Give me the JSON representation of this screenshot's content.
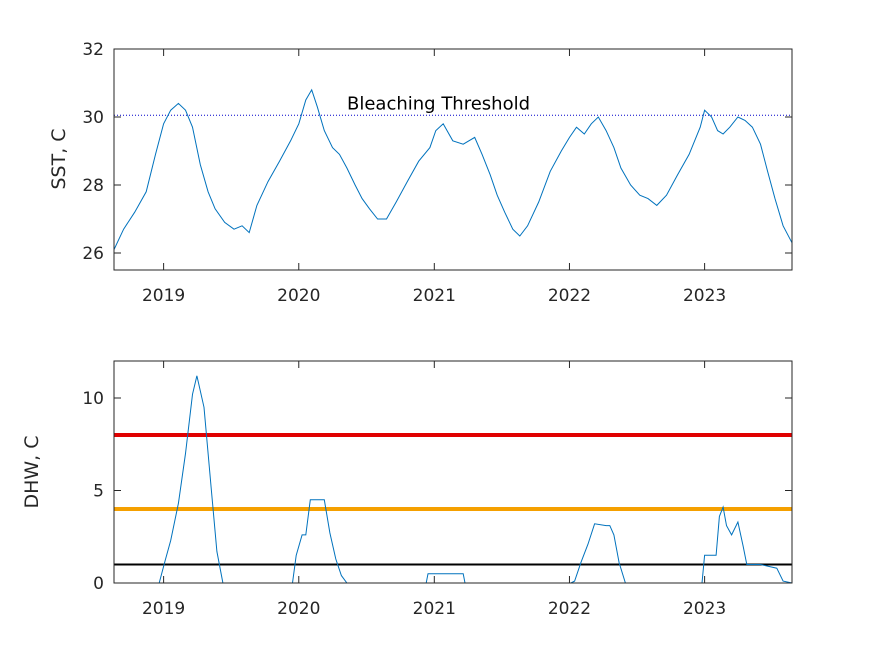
{
  "chart_data": [
    {
      "type": "line",
      "ylabel": "SST, C",
      "ylim": [
        25.5,
        32
      ],
      "yticks": [
        "26",
        "28",
        "30",
        "32"
      ],
      "yticks_values": [
        26,
        28,
        30,
        32
      ],
      "xticks": [
        "2019",
        "2020",
        "2021",
        "2022",
        "2023"
      ],
      "xticks_values": [
        "2019-01-01",
        "2020-01-01",
        "2021-01-01",
        "2022-01-01",
        "2023-01-01"
      ],
      "xlim": [
        "2018-08-20",
        "2023-08-25"
      ],
      "grid": false,
      "series_color": "#0072BD",
      "threshold": {
        "value": 30.05,
        "label": "Bleaching Threshold",
        "style": "dotted",
        "color": "#0000CC"
      },
      "series": [
        {
          "x": [
            "2018-08-20",
            "2018-09-15",
            "2018-10-15",
            "2018-11-15",
            "2018-12-10",
            "2019-01-01",
            "2019-01-20",
            "2019-02-10",
            "2019-03-01",
            "2019-03-20",
            "2019-04-10",
            "2019-05-01",
            "2019-05-20",
            "2019-06-15",
            "2019-07-10",
            "2019-08-01",
            "2019-08-20",
            "2019-09-10",
            "2019-10-10",
            "2019-11-10",
            "2019-12-10",
            "2020-01-01",
            "2020-01-20",
            "2020-02-05",
            "2020-02-20",
            "2020-03-10",
            "2020-04-01",
            "2020-04-20",
            "2020-05-10",
            "2020-06-01",
            "2020-06-20",
            "2020-07-10",
            "2020-08-01",
            "2020-08-25",
            "2020-09-20",
            "2020-10-20",
            "2020-11-20",
            "2020-12-20",
            "2021-01-05",
            "2021-01-25",
            "2021-02-20",
            "2021-03-20",
            "2021-04-20",
            "2021-05-10",
            "2021-06-01",
            "2021-06-20",
            "2021-07-10",
            "2021-08-01",
            "2021-08-20",
            "2021-09-10",
            "2021-10-10",
            "2021-11-10",
            "2021-12-10",
            "2022-01-01",
            "2022-01-20",
            "2022-02-10",
            "2022-03-01",
            "2022-03-20",
            "2022-04-10",
            "2022-05-01",
            "2022-05-20",
            "2022-06-15",
            "2022-07-10",
            "2022-08-01",
            "2022-08-25",
            "2022-09-20",
            "2022-10-20",
            "2022-11-20",
            "2022-12-20",
            "2023-01-01",
            "2023-01-20",
            "2023-02-05",
            "2023-02-20",
            "2023-03-10",
            "2023-04-01",
            "2023-04-20",
            "2023-05-10",
            "2023-06-01",
            "2023-06-20",
            "2023-07-10",
            "2023-08-01",
            "2023-08-25"
          ],
          "y": [
            26.1,
            26.7,
            27.2,
            27.8,
            28.9,
            29.8,
            30.2,
            30.4,
            30.2,
            29.7,
            28.6,
            27.8,
            27.3,
            26.9,
            26.7,
            26.8,
            26.6,
            27.4,
            28.1,
            28.7,
            29.3,
            29.8,
            30.5,
            30.8,
            30.3,
            29.6,
            29.1,
            28.9,
            28.5,
            28.0,
            27.6,
            27.3,
            27.0,
            27.0,
            27.5,
            28.1,
            28.7,
            29.1,
            29.6,
            29.8,
            29.3,
            29.2,
            29.4,
            28.9,
            28.3,
            27.7,
            27.2,
            26.7,
            26.5,
            26.8,
            27.5,
            28.4,
            29.0,
            29.4,
            29.7,
            29.5,
            29.8,
            30.0,
            29.6,
            29.1,
            28.5,
            28.0,
            27.7,
            27.6,
            27.4,
            27.7,
            28.3,
            28.9,
            29.7,
            30.2,
            30.0,
            29.6,
            29.5,
            29.7,
            30.0,
            29.9,
            29.7,
            29.2,
            28.4,
            27.6,
            26.8,
            26.3
          ]
        }
      ]
    },
    {
      "type": "line",
      "ylabel": "DHW, C",
      "ylim": [
        0,
        12
      ],
      "yticks": [
        "0",
        "5",
        "10"
      ],
      "yticks_values": [
        0,
        5,
        10
      ],
      "xticks": [
        "2019",
        "2020",
        "2021",
        "2022",
        "2023"
      ],
      "xticks_values": [
        "2019-01-01",
        "2020-01-01",
        "2021-01-01",
        "2022-01-01",
        "2023-01-01"
      ],
      "xlim": [
        "2018-08-20",
        "2023-08-25"
      ],
      "grid": false,
      "series_color": "#0072BD",
      "reference_lines": [
        {
          "value": 8,
          "color": "#E00000"
        },
        {
          "value": 4,
          "color": "#F5A000"
        },
        {
          "value": 1,
          "color": "#000000"
        }
      ],
      "series": [
        {
          "x": [
            "2018-08-20",
            "2018-12-20",
            "2019-01-05",
            "2019-01-20",
            "2019-02-10",
            "2019-03-01",
            "2019-03-20",
            "2019-04-01",
            "2019-04-20",
            "2019-05-10",
            "2019-05-25",
            "2019-06-10",
            "2019-12-15",
            "2019-12-25",
            "2020-01-10",
            "2020-01-20",
            "2020-02-01",
            "2020-02-20",
            "2020-03-10",
            "2020-03-25",
            "2020-04-10",
            "2020-04-25",
            "2020-05-10",
            "2020-12-10",
            "2020-12-15",
            "2021-03-20",
            "2021-03-25",
            "2022-01-05",
            "2022-01-15",
            "2022-02-01",
            "2022-02-20",
            "2022-03-10",
            "2022-04-10",
            "2022-04-20",
            "2022-05-01",
            "2022-05-15",
            "2022-06-01",
            "2022-12-25",
            "2023-01-01",
            "2023-02-01",
            "2023-02-10",
            "2023-02-20",
            "2023-03-01",
            "2023-03-15",
            "2023-04-01",
            "2023-04-15",
            "2023-04-25",
            "2023-05-15",
            "2023-06-01",
            "2023-07-15",
            "2023-08-01",
            "2023-08-25"
          ],
          "y": [
            0,
            0,
            1.2,
            2.3,
            4.3,
            7.0,
            10.2,
            11.2,
            9.5,
            5.0,
            1.7,
            0,
            0,
            1.5,
            2.6,
            2.6,
            4.5,
            4.5,
            4.5,
            2.7,
            1.3,
            0.4,
            0,
            0,
            0.5,
            0.5,
            0,
            0,
            0.1,
            1.1,
            2.1,
            3.2,
            3.1,
            3.1,
            2.6,
            1.1,
            0,
            0,
            1.5,
            1.5,
            3.6,
            4.1,
            3.1,
            2.6,
            3.3,
            2.0,
            1.0,
            1.0,
            1.0,
            0.8,
            0.1,
            0
          ]
        }
      ]
    }
  ]
}
